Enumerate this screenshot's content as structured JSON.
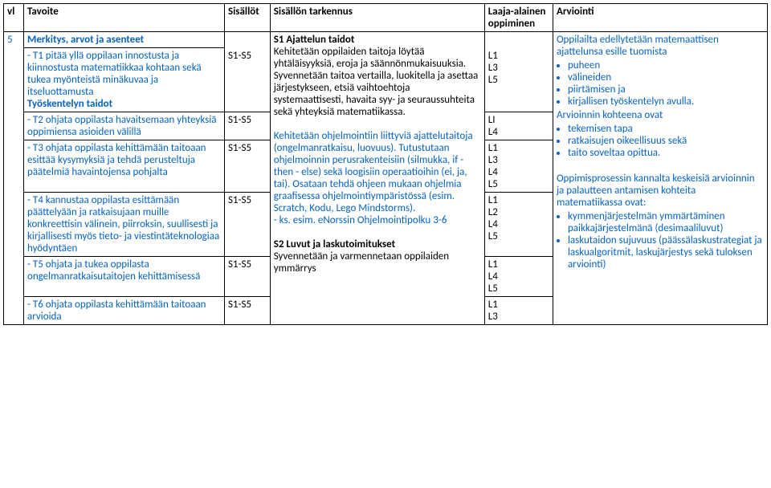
{
  "headers": {
    "vl": "vl",
    "tavoite": "Tavoite",
    "sisallot": "Sisällöt",
    "tarkennus": "Sisällön tarkennus",
    "laaja": "Laaja-alainen oppiminen",
    "arviointi": "Arviointi"
  },
  "vl_num": "5",
  "section": "Merkitys, arvot ja asenteet",
  "tavoitteet": {
    "t1": "- T1 pitää yllä oppilaan innostusta ja kiinnostusta matematiikkaa kohtaan sekä tukea myönteistä minäkuvaa ja itseluottamusta",
    "tyoskentely": "Työskentelyn taidot",
    "t2": "- T2 ohjata oppilasta havaitsemaan yhteyksiä oppimiensa asioiden välillä",
    "t3": "- T3 ohjata oppilasta kehittämään taitoaan esittää kysymyksiä ja tehdä perusteltuja päätelmiä havaintojensa pohjalta",
    "t4": "- T4 kannustaa oppilasta esittämään päättelyään ja ratkaisujaan muille konkreettisin välinein, piirroksin, suullisesti ja kirjallisesti myös tieto- ja viestintäteknologiaa hyödyntäen",
    "t5": "- T5 ohjata ja tukea oppilasta ongelmanratkaisutaitojen kehittämisessä",
    "t6": "- T6 ohjata oppilasta kehittämään taitoaan arvioida"
  },
  "sis": {
    "s1": "S1-S5",
    "s2": "S1-S5",
    "s3": "S1-S5",
    "s4": "S1-S5",
    "s5": "S1-S5",
    "s6": "S1-S5"
  },
  "tarkennus": {
    "s1_title": "S1 Ajattelun taidot",
    "s1_body1": "Kehitetään oppilaiden taitoja löytää yhtäläisyyksiä, eroja ja säännönmukaisuuksia. Syvennetään taitoa vertailla, luokitella ja asettaa järjestykseen,  etsiä vaihtoehtoja systemaattisesti, havaita syy- ja seuraussuhteita sekä yhteyksiä matematiikassa.",
    "s1_body2a": "Kehitetään ohjelmointiin liittyviä ajattelutaitoja (ongelmanratkaisu, luovuus). Tutustutaan ohjelmoinnin perusrakenteisiin (silmukka, if - then - else) sekä loogisiin operaatioihin (ei, ja, tai). Osataan tehdä ohjeen mukaan ohjelmia graafisessa ohjelmointiympäristössä (esim. Scratch, Kodu, Lego Mindstorms).",
    "s1_body2b": " - ks.  esim.  eNorssin Ohjelmointipolku 3-6",
    "s2_title": "S2 Luvut ja laskutoimitukset",
    "s2_body": "Syvennetään ja varmennetaan oppilaiden ymmärrys"
  },
  "laaja": {
    "r1": [
      "L1",
      "L3",
      "L5"
    ],
    "r2": [
      "LI",
      "L4"
    ],
    "r3": [
      "L1",
      "L3",
      "L4",
      "L5"
    ],
    "r4": [
      "L1",
      "L2",
      "L4",
      "L5"
    ],
    "r5": [
      "L1",
      "L4",
      "L5"
    ],
    "r6": [
      "L1",
      "L3"
    ]
  },
  "arviointi": {
    "intro": "Oppilailta edellytetään matemaattisen ajattelunsa esille tuomista",
    "b1": [
      "puheen",
      "välineiden",
      "piirtämisen ja",
      "kirjallisen työskentelyn avulla."
    ],
    "kohteena": "Arvioinnin kohteena ovat",
    "b2": [
      "tekemisen tapa",
      "ratkaisujen oikeellisuus sekä",
      "taito soveltaa opittua."
    ],
    "pros": "Oppimisprosessin kannalta keskeisiä arvioinnin ja palautteen antamisen kohteita matematiikassa ovat:",
    "b3": [
      "kymmenjärjestelmän ymmärtäminen paikkajärjestelmänä (desimaaliluvut)",
      "laskutaidon sujuvuus (päässälaskustrategiat ja laskualgoritmit, laskujärjestys sekä tuloksen arviointi)"
    ]
  }
}
